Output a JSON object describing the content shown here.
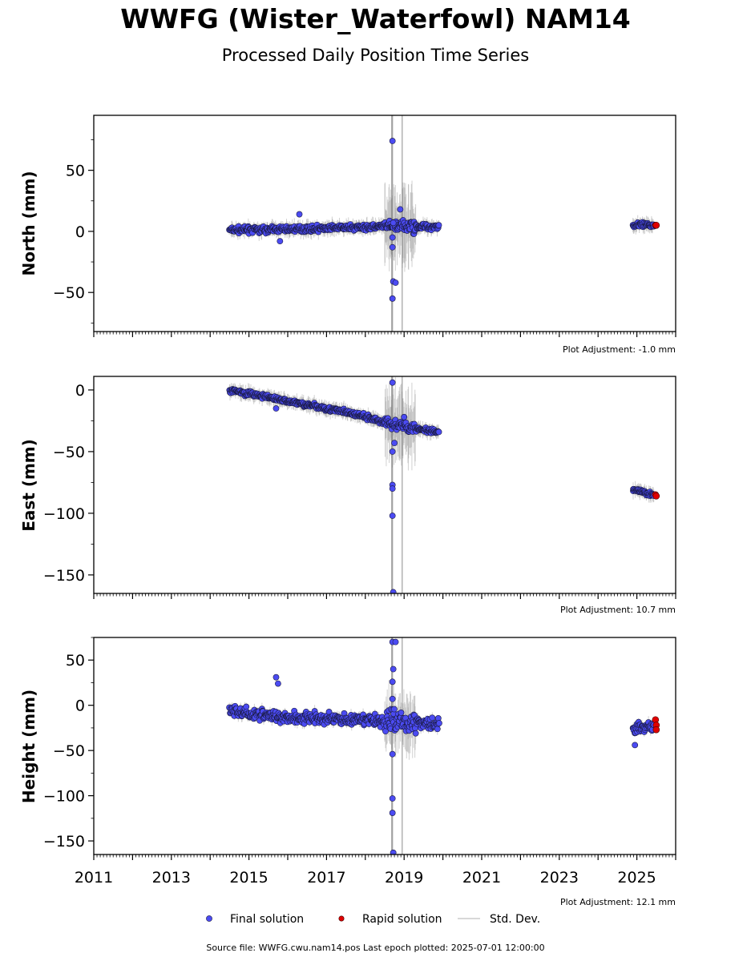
{
  "title": "WWFG (Wister_Waterfowl) NAM14",
  "subtitle": "Processed Daily Position Time Series",
  "source_text": "Source file: WWFG.cwu.nam14.pos  Last epoch plotted: 2025-07-01 12:00:00",
  "colors": {
    "final": "#4b4bf2",
    "rapid": "#e00000",
    "std": "#9a9a9a"
  },
  "legend": [
    {
      "label": "Final solution",
      "marker": "final"
    },
    {
      "label": "Rapid solution",
      "marker": "rapid"
    },
    {
      "label": "Std. Dev.",
      "marker": "std"
    }
  ],
  "chart_data": [
    {
      "type": "scatter",
      "ylabel": "North (mm)",
      "ylim": [
        -82,
        95
      ],
      "yticks": [
        50,
        0,
        -50
      ],
      "yticklabels": [
        "50",
        "0",
        "−50"
      ],
      "xlim": [
        2011,
        2026
      ],
      "adjustment": "Plot Adjustment: -1.0 mm",
      "trend": [
        [
          2014.5,
          1
        ],
        [
          2016.5,
          2
        ],
        [
          2018.5,
          4
        ],
        [
          2019.9,
          4
        ]
      ],
      "trend2": [
        [
          2024.9,
          5
        ],
        [
          2025.45,
          5
        ]
      ],
      "scatter": 2.2,
      "outliers": [
        [
          2016.3,
          14
        ],
        [
          2018.7,
          74
        ],
        [
          2018.7,
          -13
        ],
        [
          2018.72,
          -41
        ],
        [
          2018.78,
          -42
        ],
        [
          2018.7,
          -55
        ],
        [
          2018.9,
          18
        ],
        [
          2015.8,
          -8
        ],
        [
          2018.7,
          -5
        ],
        [
          2018.72,
          7
        ]
      ],
      "rapid": [
        [
          2025.48,
          5
        ],
        [
          2025.5,
          5
        ]
      ]
    },
    {
      "type": "scatter",
      "ylabel": "East (mm)",
      "ylim": [
        -165,
        11
      ],
      "yticks": [
        0,
        -50,
        -100,
        -150
      ],
      "yticklabels": [
        "0",
        "−50",
        "−100",
        "−150"
      ],
      "xlim": [
        2011,
        2026
      ],
      "adjustment": "Plot Adjustment: 10.7 mm",
      "trend": [
        [
          2014.5,
          0
        ],
        [
          2015.5,
          -6
        ],
        [
          2016.5,
          -12
        ],
        [
          2017.5,
          -18
        ],
        [
          2018.6,
          -27
        ],
        [
          2019.9,
          -35
        ]
      ],
      "trend2": [
        [
          2024.9,
          -81
        ],
        [
          2025.45,
          -85
        ]
      ],
      "scatter": 1.8,
      "outliers": [
        [
          2018.7,
          6
        ],
        [
          2018.7,
          -50
        ],
        [
          2018.7,
          -77
        ],
        [
          2018.7,
          -80
        ],
        [
          2018.7,
          -102
        ],
        [
          2018.72,
          -164
        ],
        [
          2015.7,
          -15
        ],
        [
          2018.75,
          -43
        ],
        [
          2019.0,
          -22
        ]
      ],
      "rapid": [
        [
          2025.48,
          -85
        ],
        [
          2025.5,
          -86
        ]
      ]
    },
    {
      "type": "scatter",
      "ylabel": "Height (mm)",
      "ylim": [
        -165,
        75
      ],
      "yticks": [
        50,
        0,
        -50,
        -100,
        -150
      ],
      "yticklabels": [
        "50",
        "0",
        "−50",
        "−100",
        "−150"
      ],
      "xlim": [
        2011,
        2026
      ],
      "xticks": [
        2011,
        2013,
        2015,
        2017,
        2019,
        2021,
        2023,
        2025
      ],
      "xticklabels": [
        "2011",
        "2013",
        "2015",
        "2017",
        "2019",
        "2021",
        "2023",
        "2025"
      ],
      "adjustment": "Plot Adjustment: 12.1 mm",
      "trend": [
        [
          2014.5,
          -5
        ],
        [
          2015.5,
          -12
        ],
        [
          2016.5,
          -14
        ],
        [
          2017.5,
          -16
        ],
        [
          2018.6,
          -17
        ],
        [
          2019.9,
          -20
        ]
      ],
      "trend2": [
        [
          2024.9,
          -26
        ],
        [
          2025.45,
          -24
        ]
      ],
      "scatter": 6,
      "outliers": [
        [
          2015.7,
          31
        ],
        [
          2015.75,
          24
        ],
        [
          2018.7,
          70
        ],
        [
          2018.72,
          40
        ],
        [
          2018.7,
          26
        ],
        [
          2018.7,
          7
        ],
        [
          2018.7,
          -54
        ],
        [
          2018.7,
          -103
        ],
        [
          2018.7,
          -119
        ],
        [
          2018.72,
          -163
        ],
        [
          2018.78,
          70
        ],
        [
          2024.95,
          -44
        ]
      ],
      "rapid": [
        [
          2025.48,
          -16
        ],
        [
          2025.5,
          -22
        ],
        [
          2025.5,
          -27
        ]
      ]
    }
  ]
}
